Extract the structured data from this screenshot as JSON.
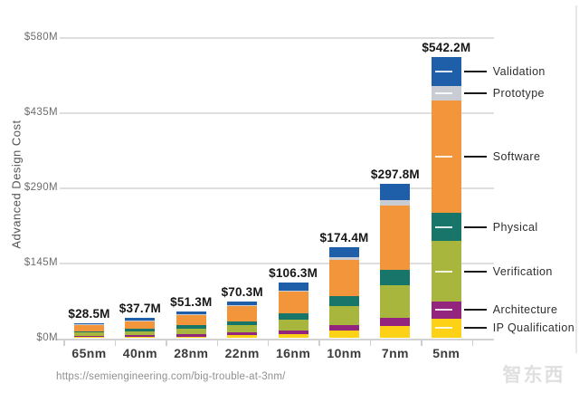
{
  "chart_data": {
    "type": "bar",
    "stacked": true,
    "ylabel": "Advanced Design Cost",
    "categories": [
      "65nm",
      "40nm",
      "28nm",
      "22nm",
      "16nm",
      "10nm",
      "7nm",
      "5nm"
    ],
    "totals": [
      28.5,
      37.7,
      51.3,
      70.3,
      106.3,
      174.4,
      297.8,
      542.2
    ],
    "total_labels": [
      "$28.5M",
      "$37.7M",
      "$51.3M",
      "$70.3M",
      "$106.3M",
      "$174.4M",
      "$297.8M",
      "$542.2M"
    ],
    "y_ticks": [
      {
        "value": 0,
        "label": "$0M"
      },
      {
        "value": 145,
        "label": "$145M"
      },
      {
        "value": 290,
        "label": "$290M"
      },
      {
        "value": 435,
        "label": "$435M"
      },
      {
        "value": 580,
        "label": "$580M"
      }
    ],
    "ylim": [
      0,
      580
    ],
    "grid": true,
    "legend_position": "right-callouts",
    "legend_order_top_to_bottom": [
      "Validation",
      "Prototype",
      "Software",
      "Physical",
      "Verification",
      "Architecture",
      "IP Qualification"
    ],
    "series_bottom_to_top": [
      {
        "name": "IP Qualification",
        "color": "#fcd116",
        "values": [
          1.0,
          1.5,
          2.3,
          4.5,
          7.5,
          14.5,
          22.7,
          36.7
        ]
      },
      {
        "name": "Architecture",
        "color": "#93257f",
        "values": [
          2.2,
          3.0,
          4.0,
          5.2,
          5.8,
          10.0,
          15.7,
          33.2
        ]
      },
      {
        "name": "Verification",
        "color": "#a8b63e",
        "values": [
          6.5,
          8.5,
          11.5,
          14.7,
          21.5,
          36.7,
          62.9,
          117.0
        ]
      },
      {
        "name": "Physical",
        "color": "#17756a",
        "values": [
          3.3,
          4.3,
          5.8,
          7.5,
          11.7,
          19.2,
          29.2,
          54.2
        ]
      },
      {
        "name": "Software",
        "color": "#f2953b",
        "values": [
          12.0,
          15.5,
          21.0,
          29.7,
          42.0,
          69.3,
          124.2,
          217.3
        ]
      },
      {
        "name": "Prototype",
        "color": "#c9ccd3",
        "values": [
          0.5,
          0.7,
          0.9,
          1.2,
          3.0,
          5.8,
          11.7,
          27.4
        ]
      },
      {
        "name": "Validation",
        "color": "#1f5fa9",
        "values": [
          3.0,
          4.2,
          5.8,
          7.5,
          14.8,
          18.9,
          31.4,
          56.4
        ]
      }
    ]
  },
  "source_url": "https://semiengineering.com/big-trouble-at-3nm/",
  "watermark": "智东西"
}
